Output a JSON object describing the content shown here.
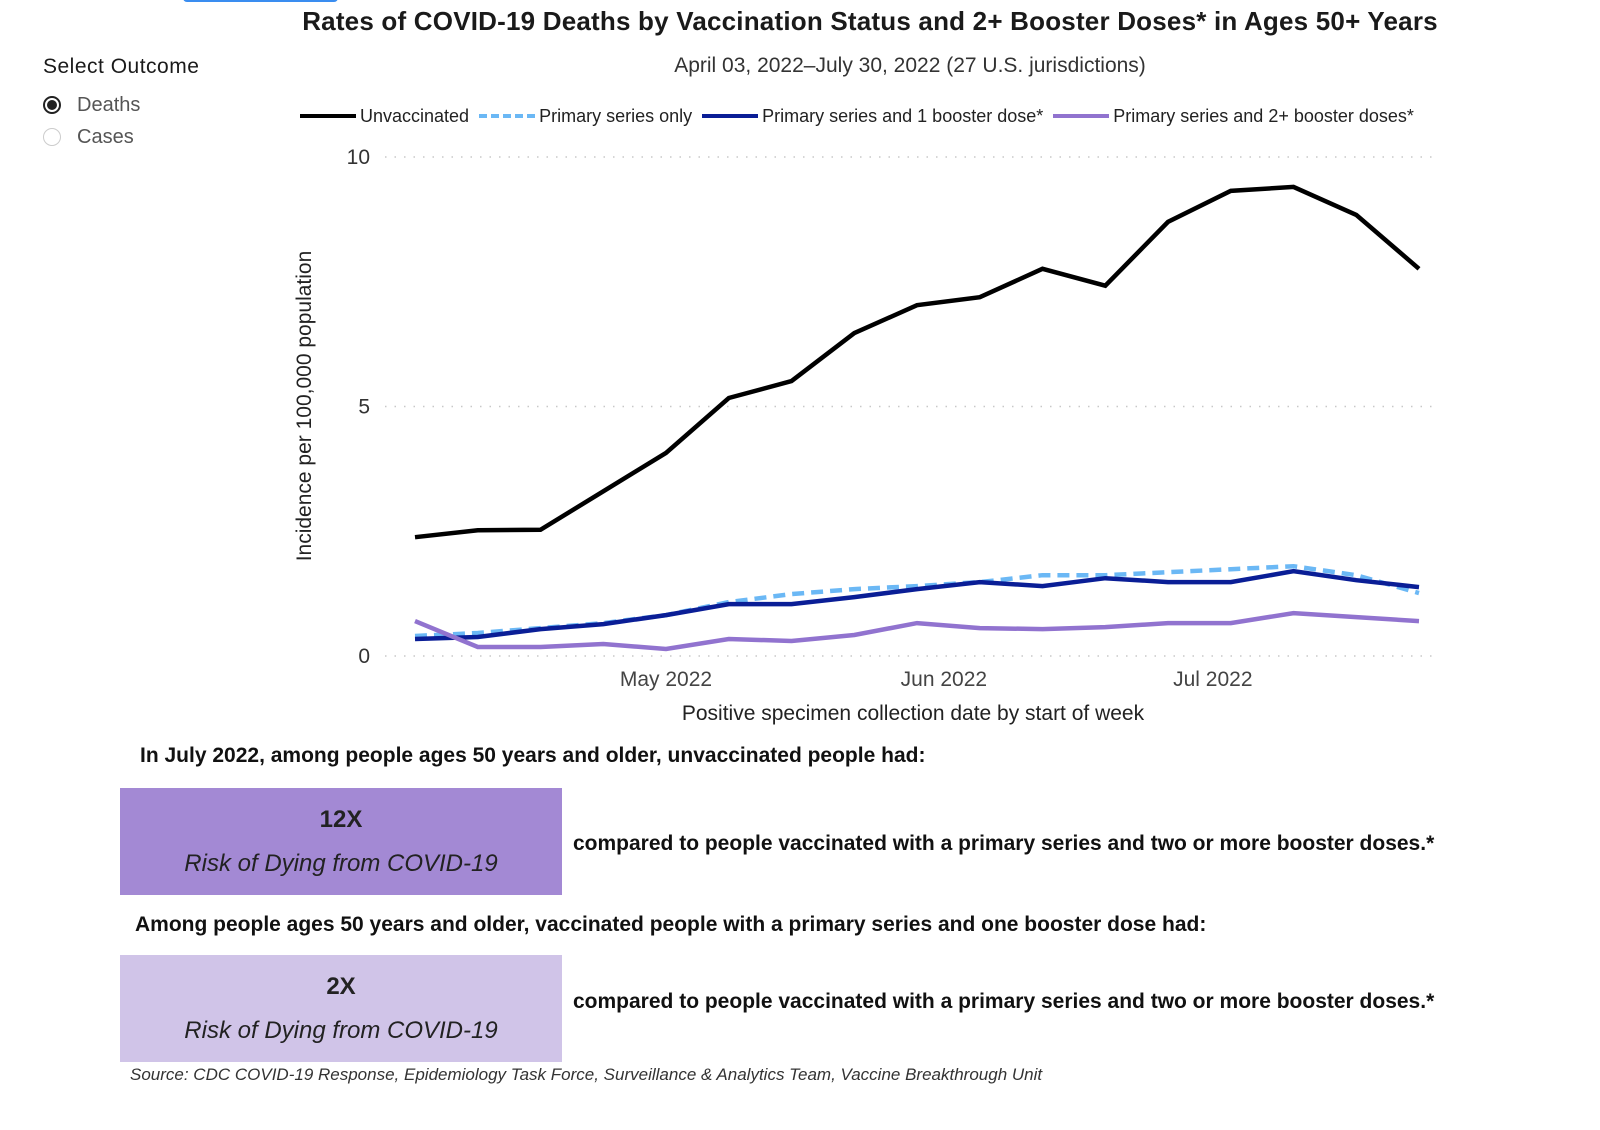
{
  "page": {
    "outcome_selector": {
      "title": "Select Outcome",
      "options": [
        {
          "label": "Deaths",
          "selected": true
        },
        {
          "label": "Cases",
          "selected": false
        }
      ]
    },
    "summary": {
      "statement_1": "In July 2022, among people ages 50 years and older, unvaccinated people had:",
      "box_1": {
        "value": "12X",
        "description": "Risk of Dying from COVID-19",
        "color": "#a389d4"
      },
      "comparison_1": "compared to people vaccinated with a primary series and two or more booster doses.*",
      "statement_2": "Among people ages 50 years and older, vaccinated people with a primary series and one booster dose had:",
      "box_2": {
        "value": "2X",
        "description": "Risk of Dying from COVID-19",
        "color": "#d0c4e8"
      },
      "comparison_2": "compared to people vaccinated with a primary series and two or more booster doses.*"
    },
    "source": "Source: CDC COVID-19 Response, Epidemiology Task Force, Surveillance & Analytics Team, Vaccine Breakthrough Unit"
  },
  "chart_data": {
    "type": "line",
    "title": "Rates of COVID-19 Deaths by Vaccination Status and 2+ Booster Doses* in Ages 50+ Years",
    "subtitle": "April 03, 2022–July 30, 2022 (27 U.S. jurisdictions)",
    "xlabel": "Positive specimen collection date by start of week",
    "ylabel": "Incidence per 100,000 population",
    "ylim": [
      0,
      10
    ],
    "yticks": [
      0,
      5,
      10
    ],
    "grid": true,
    "legend_position": "top",
    "x": [
      "2022-04-03",
      "2022-04-10",
      "2022-04-17",
      "2022-04-24",
      "2022-05-01",
      "2022-05-08",
      "2022-05-15",
      "2022-05-22",
      "2022-05-29",
      "2022-06-05",
      "2022-06-12",
      "2022-06-19",
      "2022-06-26",
      "2022-07-03",
      "2022-07-10",
      "2022-07-17",
      "2022-07-24"
    ],
    "xlim": [
      "2022-04-03",
      "2022-07-24"
    ],
    "xticks": [
      {
        "date": "2022-05-01",
        "label": "May 2022"
      },
      {
        "date": "2022-06-01",
        "label": "Jun 2022"
      },
      {
        "date": "2022-07-01",
        "label": "Jul 2022"
      }
    ],
    "series": [
      {
        "name": "Unvaccinated",
        "color": "#000000",
        "dash": false,
        "values": [
          2.38,
          2.52,
          2.53,
          3.3,
          4.07,
          5.17,
          5.51,
          6.47,
          7.03,
          7.19,
          7.76,
          7.42,
          8.7,
          9.32,
          9.4,
          8.84,
          7.76
        ]
      },
      {
        "name": "Primary series only",
        "color": "#6bb8f5",
        "dash": true,
        "values": [
          0.4,
          0.46,
          0.56,
          0.66,
          0.82,
          1.08,
          1.24,
          1.34,
          1.4,
          1.48,
          1.62,
          1.62,
          1.68,
          1.74,
          1.8,
          1.62,
          1.26
        ]
      },
      {
        "name": "Primary series and 1 booster dose*",
        "color": "#0a1e96",
        "dash": false,
        "values": [
          0.34,
          0.38,
          0.54,
          0.64,
          0.82,
          1.04,
          1.04,
          1.18,
          1.34,
          1.48,
          1.4,
          1.56,
          1.48,
          1.48,
          1.7,
          1.52,
          1.38
        ]
      },
      {
        "name": "Primary series and 2+ booster doses*",
        "color": "#9173cf",
        "dash": false,
        "values": [
          0.7,
          0.18,
          0.18,
          0.24,
          0.14,
          0.34,
          0.3,
          0.42,
          0.66,
          0.56,
          0.54,
          0.58,
          0.66,
          0.66,
          0.86,
          0.78,
          0.7
        ]
      }
    ]
  }
}
